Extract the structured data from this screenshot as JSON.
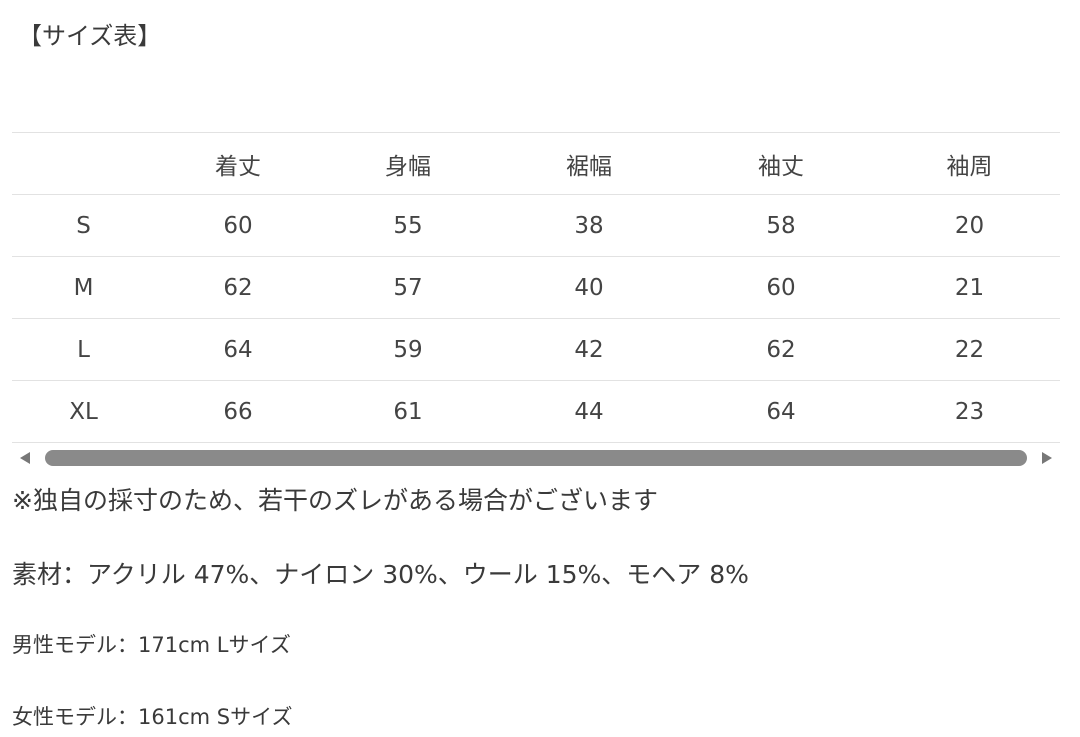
{
  "title": "【サイズ表】",
  "table": {
    "header": [
      "着丈",
      "身幅",
      "裾幅",
      "袖丈",
      "袖周"
    ],
    "rows": [
      [
        "S",
        60,
        55,
        38,
        58,
        20
      ],
      [
        "M",
        62,
        57,
        40,
        60,
        21
      ],
      [
        "L",
        64,
        59,
        42,
        62,
        22
      ],
      [
        "XL",
        66,
        61,
        44,
        64,
        23
      ]
    ]
  },
  "notes": [
    "※独自の採寸のため、若干のズレがある場合がございます",
    "素材：アクリル 47%、ナイロン 30%、ウール 15%、モヘア 8%",
    "男性モデル：171cm Lサイズ",
    "女性モデル：161cm Sサイズ"
  ]
}
